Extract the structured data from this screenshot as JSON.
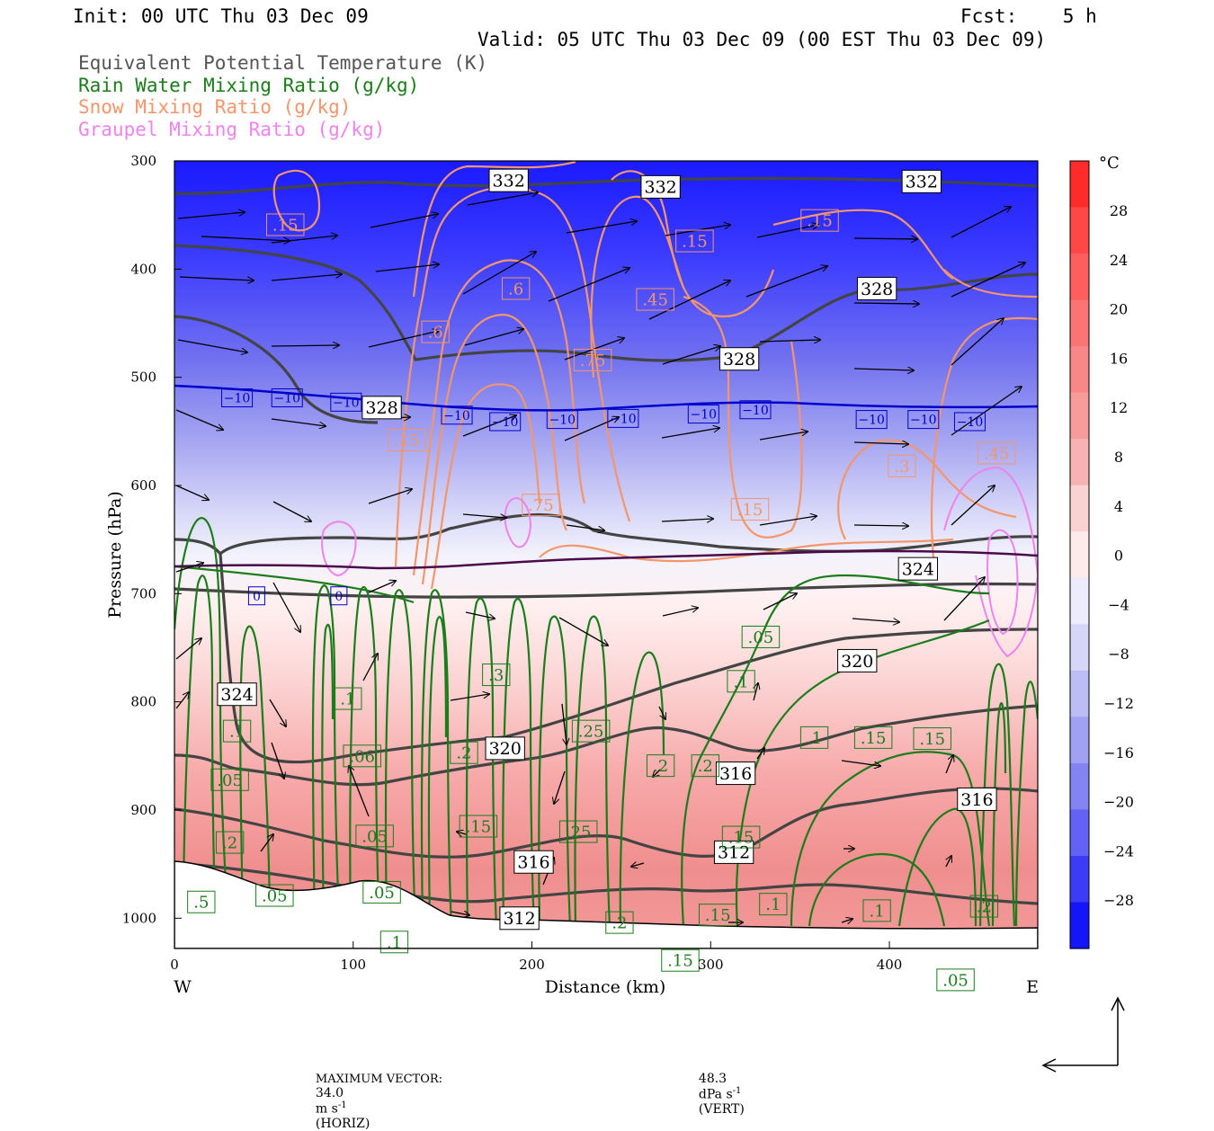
{
  "header": {
    "init": "Init: 00 UTC Thu 03 Dec 09",
    "fcst": "Fcst:    5 h",
    "valid": "Valid: 05 UTC Thu 03 Dec 09 (00 EST Thu 03 Dec 09)"
  },
  "legend": [
    {
      "label": "Equivalent Potential Temperature (K)",
      "color": "#555555"
    },
    {
      "label": "Rain Water Mixing Ratio (g/kg)",
      "color": "#1a7d1a"
    },
    {
      "label": "Snow Mixing Ratio (g/kg)",
      "color": "#f4956a"
    },
    {
      "label": "Graupel Mixing Ratio (g/kg)",
      "color": "#ee82ee"
    }
  ],
  "chart_data": {
    "type": "heatmap",
    "ylabel": "Pressure (hPa)",
    "xlabel": "Distance (km)",
    "xlim": [
      0,
      483
    ],
    "ylim": [
      1028,
      300
    ],
    "x_ticks": [
      "0",
      "100",
      "200",
      "300",
      "400"
    ],
    "y_ticks": [
      "300",
      "400",
      "500",
      "600",
      "700",
      "800",
      "900",
      "1000"
    ],
    "x_left_label": "W",
    "x_right_label": "E",
    "colorbar": {
      "unit": "°C",
      "ticks": [
        "28",
        "24",
        "20",
        "16",
        "12",
        "8",
        "4",
        "0",
        "−4",
        "−8",
        "−12",
        "−16",
        "−20",
        "−24",
        "−28"
      ]
    },
    "contour_labels": {
      "theta_e": [
        {
          "text": "332",
          "x": 187,
          "p": 318
        },
        {
          "text": "332",
          "x": 272,
          "p": 324
        },
        {
          "text": "332",
          "x": 418,
          "p": 319
        },
        {
          "text": "328",
          "x": 393,
          "p": 418
        },
        {
          "text": "328",
          "x": 316,
          "p": 483
        },
        {
          "text": "328",
          "x": 116,
          "p": 528
        },
        {
          "text": "324",
          "x": 416,
          "p": 677
        },
        {
          "text": "320",
          "x": 382,
          "p": 762
        },
        {
          "text": "324",
          "x": 35,
          "p": 793
        },
        {
          "text": "320",
          "x": 185,
          "p": 843
        },
        {
          "text": "316",
          "x": 314,
          "p": 866
        },
        {
          "text": "316",
          "x": 449,
          "p": 890
        },
        {
          "text": "316",
          "x": 201,
          "p": 948
        },
        {
          "text": "312",
          "x": 313,
          "p": 939
        },
        {
          "text": "312",
          "x": 193,
          "p": 1000
        }
      ],
      "rain": [
        {
          "text": ".05",
          "x": 328,
          "p": 740
        },
        {
          "text": ".1",
          "x": 317,
          "p": 781
        },
        {
          "text": ".3",
          "x": 180,
          "p": 775
        },
        {
          "text": ".1",
          "x": 97,
          "p": 797
        },
        {
          "text": ".1",
          "x": 35,
          "p": 827
        },
        {
          "text": ".06",
          "x": 105,
          "p": 850
        },
        {
          "text": ".2",
          "x": 162,
          "p": 847
        },
        {
          "text": ".25",
          "x": 233,
          "p": 827
        },
        {
          "text": ".2",
          "x": 272,
          "p": 859
        },
        {
          "text": ".2",
          "x": 297,
          "p": 859
        },
        {
          "text": ".1",
          "x": 358,
          "p": 833
        },
        {
          "text": ".15",
          "x": 391,
          "p": 833
        },
        {
          "text": ".15",
          "x": 424,
          "p": 834
        },
        {
          "text": ".05",
          "x": 31,
          "p": 872
        },
        {
          "text": ".05",
          "x": 112,
          "p": 924
        },
        {
          "text": ".15",
          "x": 170,
          "p": 915
        },
        {
          "text": ".25",
          "x": 226,
          "p": 920
        },
        {
          "text": ".15",
          "x": 317,
          "p": 925
        },
        {
          "text": ".2",
          "x": 31,
          "p": 930
        },
        {
          "text": ".05",
          "x": 56,
          "p": 979
        },
        {
          "text": ".05",
          "x": 116,
          "p": 976
        },
        {
          "text": ".2",
          "x": 249,
          "p": 1004
        },
        {
          "text": ".15",
          "x": 304,
          "p": 997
        },
        {
          "text": ".1",
          "x": 335,
          "p": 987
        },
        {
          "text": ".1",
          "x": 393,
          "p": 993
        },
        {
          "text": ".2",
          "x": 453,
          "p": 989
        },
        {
          "text": ".5",
          "x": 15,
          "p": 985
        },
        {
          "text": ".1",
          "x": 123,
          "p": 1022
        },
        {
          "text": ".15",
          "x": 283,
          "p": 1039
        },
        {
          "text": ".05",
          "x": 437,
          "p": 1057
        }
      ],
      "snow": [
        {
          "text": ".15",
          "x": 62,
          "p": 359
        },
        {
          "text": ".15",
          "x": 291,
          "p": 374
        },
        {
          "text": ".15",
          "x": 361,
          "p": 355
        },
        {
          "text": ".6",
          "x": 191,
          "p": 418
        },
        {
          "text": ".45",
          "x": 269,
          "p": 428
        },
        {
          "text": ".6",
          "x": 146,
          "p": 458
        },
        {
          "text": ".75",
          "x": 234,
          "p": 484
        },
        {
          "text": ".15",
          "x": 130,
          "p": 558
        },
        {
          "text": ".75",
          "x": 205,
          "p": 618
        },
        {
          "text": ".15",
          "x": 322,
          "p": 622
        },
        {
          "text": ".3",
          "x": 407,
          "p": 582
        },
        {
          "text": ".45",
          "x": 460,
          "p": 570
        }
      ],
      "temperature": [
        {
          "text": "−10",
          "x": 35,
          "p": 519
        },
        {
          "text": "−10",
          "x": 63,
          "p": 519
        },
        {
          "text": "−10",
          "x": 96,
          "p": 523
        },
        {
          "text": "−10",
          "x": 158,
          "p": 535
        },
        {
          "text": "−10",
          "x": 185,
          "p": 541
        },
        {
          "text": "−10",
          "x": 217,
          "p": 539
        },
        {
          "text": "−10",
          "x": 251,
          "p": 538
        },
        {
          "text": "−10",
          "x": 296,
          "p": 534
        },
        {
          "text": "−10",
          "x": 325,
          "p": 530
        },
        {
          "text": "−10",
          "x": 390,
          "p": 539
        },
        {
          "text": "−10",
          "x": 419,
          "p": 539
        },
        {
          "text": "−10",
          "x": 445,
          "p": 541
        },
        {
          "text": "0",
          "x": 46,
          "p": 702
        },
        {
          "text": "0",
          "x": 92,
          "p": 702
        }
      ]
    },
    "max_vector": {
      "label": "MAXIMUM VECTOR:",
      "horiz_value": "34.0",
      "horiz_unit": "m s",
      "horiz_exp": "-1",
      "horiz_tag": "(HORIZ)",
      "vert_value": "48.3",
      "vert_unit": "dPa s",
      "vert_exp": "-1",
      "vert_tag": "(VERT)"
    }
  }
}
